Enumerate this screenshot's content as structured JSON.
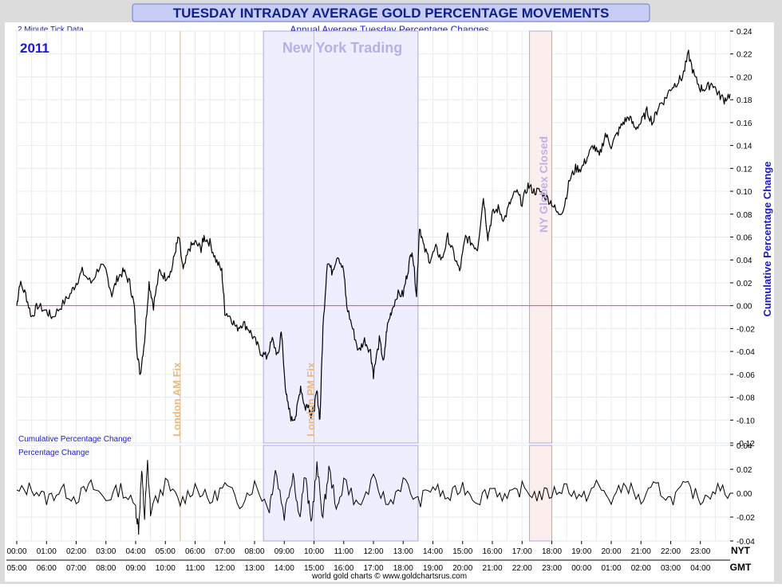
{
  "title": "TUESDAY INTRADAY AVERAGE GOLD PERCENTAGE MOVEMENTS",
  "subtitle": "Annual Average Tuesday Percentage Changes",
  "tick_note": "2 Minute Tick Data",
  "year": "2011",
  "footer": "world gold charts © www.goldchartsrus.com",
  "annotations": {
    "ny_trading": "New York Trading",
    "london_am": "London AM Fix",
    "london_pm": "London PM Fix",
    "globex": "NY Globex Closed"
  },
  "colors": {
    "title_bg": "#c8cdf5",
    "title_text": "#10208a",
    "label_blue": "#1a1acc",
    "ny_band": "#eeeeff",
    "ny_text": "#b4b0e8",
    "fix_line": "#f0b878",
    "globex_band": "#fdeeee",
    "globex_text": "#c0b0e8",
    "zero_line": "#e040c0",
    "series": "#000000"
  },
  "chart_data": [
    {
      "type": "line",
      "title": "Cumulative Percentage Change",
      "ylabel": "Cumulative Percentage Change",
      "ylim": [
        -0.12,
        0.24
      ],
      "yticks": [
        "0.24",
        "0.22",
        "0.20",
        "0.18",
        "0.16",
        "0.14",
        "0.12",
        "0.10",
        "0.08",
        "0.06",
        "0.04",
        "0.02",
        "0.00",
        "-0.02",
        "-0.04",
        "-0.06",
        "-0.08",
        "-0.10",
        "-0.12"
      ],
      "x_nyt": [
        "00:00",
        "01:00",
        "02:00",
        "03:00",
        "04:00",
        "05:00",
        "06:00",
        "07:00",
        "08:00",
        "09:00",
        "10:00",
        "11:00",
        "12:00",
        "13:00",
        "14:00",
        "15:00",
        "16:00",
        "17:00",
        "18:00",
        "19:00",
        "20:00",
        "21:00",
        "22:00",
        "23:00"
      ],
      "x_gmt": [
        "05:00",
        "06:00",
        "07:00",
        "08:00",
        "09:00",
        "10:00",
        "11:00",
        "12:00",
        "13:00",
        "14:00",
        "15:00",
        "16:00",
        "17:00",
        "18:00",
        "19:00",
        "20:00",
        "21:00",
        "22:00",
        "23:00",
        "00:00",
        "01:00",
        "02:00",
        "03:00",
        "04:00"
      ],
      "xaxis_nyt_label": "NYT",
      "xaxis_gmt_label": "GMT",
      "events_nyt_hours": {
        "ny_trading": [
          8.3,
          13.5
        ],
        "london_am": 5.5,
        "london_pm": 10.0,
        "globex_closed": [
          17.25,
          18.0
        ]
      },
      "points_nyt_hours": [
        [
          0.0,
          0.0
        ],
        [
          0.1,
          0.02
        ],
        [
          0.3,
          0.01
        ],
        [
          0.5,
          -0.01
        ],
        [
          0.7,
          0.0
        ],
        [
          1.0,
          -0.005
        ],
        [
          1.2,
          -0.01
        ],
        [
          1.5,
          0.0
        ],
        [
          1.8,
          0.01
        ],
        [
          2.0,
          0.02
        ],
        [
          2.2,
          0.03
        ],
        [
          2.5,
          0.02
        ],
        [
          2.8,
          0.035
        ],
        [
          3.0,
          0.03
        ],
        [
          3.2,
          0.01
        ],
        [
          3.4,
          0.025
        ],
        [
          3.6,
          0.03
        ],
        [
          3.8,
          0.02
        ],
        [
          3.95,
          0.0
        ],
        [
          4.05,
          -0.04
        ],
        [
          4.15,
          -0.06
        ],
        [
          4.3,
          -0.03
        ],
        [
          4.45,
          0.02
        ],
        [
          4.6,
          0.0
        ],
        [
          4.8,
          0.03
        ],
        [
          5.0,
          0.025
        ],
        [
          5.2,
          0.03
        ],
        [
          5.35,
          0.05
        ],
        [
          5.45,
          0.06
        ],
        [
          5.6,
          0.03
        ],
        [
          5.8,
          0.05
        ],
        [
          6.0,
          0.055
        ],
        [
          6.2,
          0.05
        ],
        [
          6.3,
          0.06
        ],
        [
          6.5,
          0.055
        ],
        [
          6.7,
          0.04
        ],
        [
          6.9,
          0.03
        ],
        [
          7.0,
          -0.005
        ],
        [
          7.2,
          -0.01
        ],
        [
          7.4,
          -0.02
        ],
        [
          7.6,
          -0.015
        ],
        [
          7.8,
          -0.02
        ],
        [
          8.0,
          -0.03
        ],
        [
          8.2,
          -0.04
        ],
        [
          8.4,
          -0.045
        ],
        [
          8.6,
          -0.03
        ],
        [
          8.8,
          -0.045
        ],
        [
          8.9,
          -0.02
        ],
        [
          9.0,
          -0.06
        ],
        [
          9.1,
          -0.085
        ],
        [
          9.25,
          -0.1
        ],
        [
          9.4,
          -0.095
        ],
        [
          9.55,
          -0.07
        ],
        [
          9.7,
          -0.09
        ],
        [
          9.8,
          -0.085
        ],
        [
          9.9,
          -0.095
        ],
        [
          10.0,
          -0.09
        ],
        [
          10.1,
          -0.075
        ],
        [
          10.2,
          -0.1
        ],
        [
          10.3,
          -0.02
        ],
        [
          10.45,
          0.04
        ],
        [
          10.6,
          0.03
        ],
        [
          10.8,
          0.045
        ],
        [
          11.0,
          0.03
        ],
        [
          11.1,
          0.0
        ],
        [
          11.3,
          -0.02
        ],
        [
          11.5,
          -0.04
        ],
        [
          11.7,
          -0.03
        ],
        [
          11.9,
          -0.04
        ],
        [
          12.0,
          -0.06
        ],
        [
          12.2,
          -0.03
        ],
        [
          12.35,
          -0.05
        ],
        [
          12.45,
          -0.02
        ],
        [
          12.6,
          -0.005
        ],
        [
          12.8,
          0.01
        ],
        [
          13.0,
          0.01
        ],
        [
          13.15,
          0.03
        ],
        [
          13.3,
          0.05
        ],
        [
          13.45,
          0.01
        ],
        [
          13.55,
          0.07
        ],
        [
          13.7,
          0.05
        ],
        [
          13.9,
          0.04
        ],
        [
          14.1,
          0.05
        ],
        [
          14.3,
          0.04
        ],
        [
          14.5,
          0.06
        ],
        [
          14.7,
          0.045
        ],
        [
          14.9,
          0.03
        ],
        [
          15.1,
          0.06
        ],
        [
          15.3,
          0.055
        ],
        [
          15.5,
          0.05
        ],
        [
          15.7,
          0.095
        ],
        [
          15.85,
          0.06
        ],
        [
          16.0,
          0.08
        ],
        [
          16.2,
          0.085
        ],
        [
          16.4,
          0.075
        ],
        [
          16.6,
          0.09
        ],
        [
          16.8,
          0.1
        ],
        [
          17.0,
          0.09
        ],
        [
          17.2,
          0.105
        ],
        [
          17.4,
          0.1
        ],
        [
          17.6,
          0.1
        ],
        [
          17.8,
          0.095
        ],
        [
          18.0,
          0.09
        ],
        [
          18.2,
          0.08
        ],
        [
          18.4,
          0.085
        ],
        [
          18.6,
          0.11
        ],
        [
          18.8,
          0.12
        ],
        [
          19.0,
          0.12
        ],
        [
          19.2,
          0.13
        ],
        [
          19.4,
          0.14
        ],
        [
          19.6,
          0.13
        ],
        [
          19.8,
          0.15
        ],
        [
          20.0,
          0.14
        ],
        [
          20.2,
          0.15
        ],
        [
          20.4,
          0.16
        ],
        [
          20.6,
          0.165
        ],
        [
          20.8,
          0.155
        ],
        [
          21.0,
          0.16
        ],
        [
          21.2,
          0.17
        ],
        [
          21.4,
          0.16
        ],
        [
          21.6,
          0.175
        ],
        [
          21.8,
          0.18
        ],
        [
          22.0,
          0.19
        ],
        [
          22.2,
          0.195
        ],
        [
          22.4,
          0.2
        ],
        [
          22.6,
          0.22
        ],
        [
          22.8,
          0.2
        ],
        [
          23.0,
          0.19
        ],
        [
          23.2,
          0.19
        ],
        [
          23.4,
          0.195
        ],
        [
          23.6,
          0.185
        ],
        [
          23.8,
          0.18
        ],
        [
          24.0,
          0.185
        ]
      ]
    },
    {
      "type": "line",
      "title": "Percentage Change",
      "ylim": [
        -0.04,
        0.04
      ],
      "yticks": [
        "0.04",
        "0.02",
        "0.00",
        "-0.02",
        "-0.04"
      ],
      "points_nyt_hours": [
        [
          0.0,
          0.0
        ],
        [
          0.5,
          0.005
        ],
        [
          1.0,
          -0.005
        ],
        [
          1.5,
          0.003
        ],
        [
          2.0,
          -0.004
        ],
        [
          2.5,
          0.006
        ],
        [
          3.0,
          -0.005
        ],
        [
          3.5,
          0.004
        ],
        [
          4.0,
          -0.012
        ],
        [
          4.1,
          -0.03
        ],
        [
          4.2,
          0.018
        ],
        [
          4.3,
          -0.02
        ],
        [
          4.4,
          0.025
        ],
        [
          4.5,
          -0.015
        ],
        [
          5.0,
          0.008
        ],
        [
          5.5,
          -0.008
        ],
        [
          6.0,
          0.006
        ],
        [
          6.5,
          -0.007
        ],
        [
          7.0,
          0.006
        ],
        [
          7.5,
          -0.008
        ],
        [
          8.0,
          0.007
        ],
        [
          8.5,
          -0.012
        ],
        [
          8.7,
          0.02
        ],
        [
          9.0,
          -0.018
        ],
        [
          9.3,
          0.018
        ],
        [
          9.5,
          -0.02
        ],
        [
          9.7,
          0.015
        ],
        [
          9.9,
          -0.025
        ],
        [
          10.1,
          0.022
        ],
        [
          10.3,
          -0.02
        ],
        [
          10.5,
          0.02
        ],
        [
          10.8,
          -0.015
        ],
        [
          11.0,
          0.012
        ],
        [
          11.5,
          -0.012
        ],
        [
          12.0,
          0.01
        ],
        [
          12.5,
          -0.01
        ],
        [
          13.0,
          0.01
        ],
        [
          13.5,
          -0.008
        ],
        [
          14.0,
          0.006
        ],
        [
          14.5,
          -0.005
        ],
        [
          15.0,
          0.006
        ],
        [
          15.5,
          -0.006
        ],
        [
          16.0,
          0.005
        ],
        [
          16.5,
          -0.005
        ],
        [
          17.0,
          0.004
        ],
        [
          17.5,
          -0.002
        ],
        [
          18.0,
          0.0
        ],
        [
          18.5,
          0.006
        ],
        [
          19.0,
          -0.006
        ],
        [
          19.5,
          0.007
        ],
        [
          20.0,
          -0.006
        ],
        [
          20.5,
          0.008
        ],
        [
          21.0,
          -0.007
        ],
        [
          21.5,
          0.006
        ],
        [
          22.0,
          -0.006
        ],
        [
          22.5,
          0.006
        ],
        [
          23.0,
          -0.005
        ],
        [
          23.5,
          0.004
        ],
        [
          24.0,
          0.0
        ]
      ]
    }
  ]
}
